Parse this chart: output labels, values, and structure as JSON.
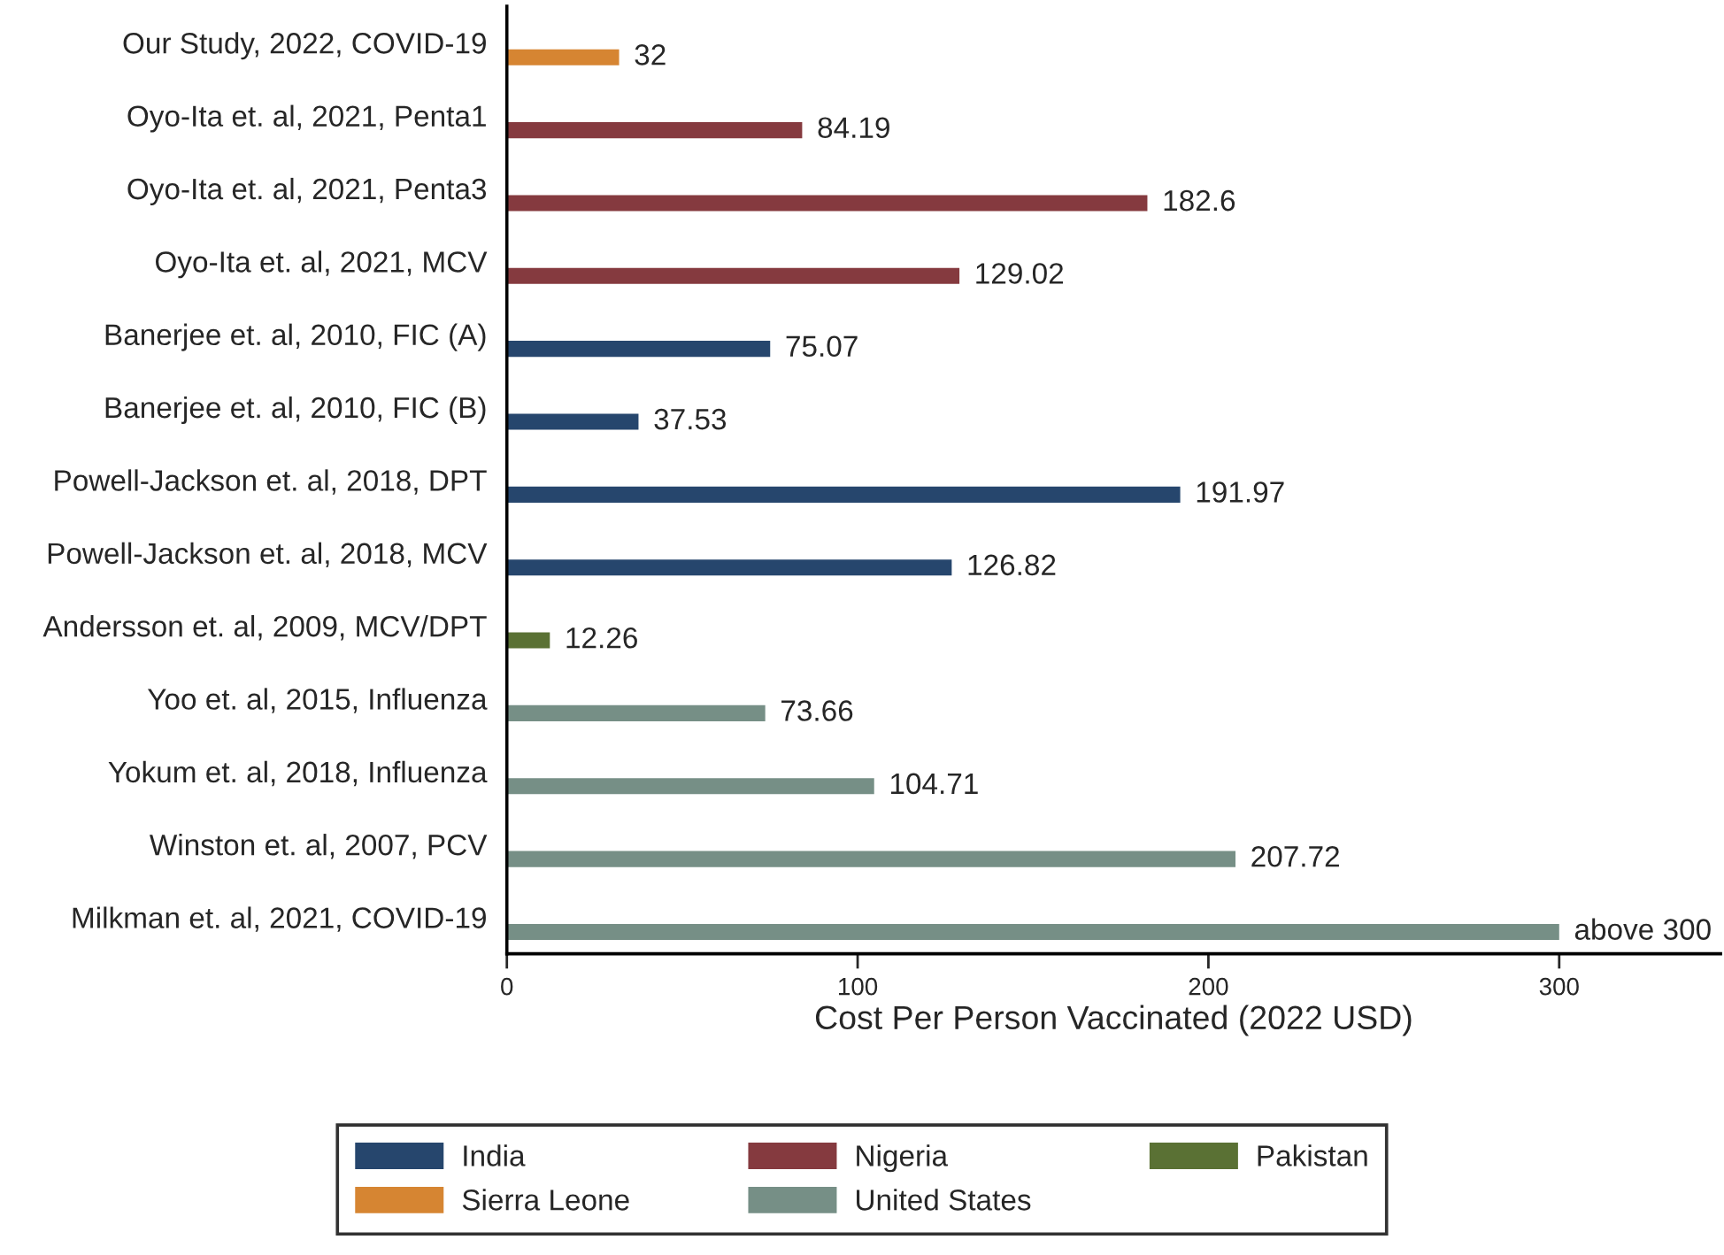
{
  "chart_data": {
    "type": "bar",
    "orientation": "horizontal",
    "xlabel": "Cost Per Person Vaccinated (2022 USD)",
    "categories": [
      "Our Study, 2022, COVID-19",
      "Oyo-Ita et. al, 2021, Penta1",
      "Oyo-Ita et. al, 2021, Penta3",
      "Oyo-Ita et. al, 2021, MCV",
      "Banerjee et. al, 2010, FIC (A)",
      "Banerjee et. al, 2010, FIC (B)",
      "Powell-Jackson et. al, 2018, DPT",
      "Powell-Jackson et. al, 2018, MCV",
      "Andersson et. al, 2009, MCV/DPT",
      "Yoo et. al, 2015, Influenza",
      "Yokum et. al, 2018, Influenza",
      "Winston et. al, 2007, PCV",
      "Milkman et. al, 2021, COVID-19"
    ],
    "series": [
      {
        "name": "India",
        "color": "#26466d",
        "values": [
          null,
          null,
          null,
          null,
          75.07,
          37.53,
          191.97,
          126.82,
          null,
          null,
          null,
          null,
          null
        ],
        "value_labels": [
          null,
          null,
          null,
          null,
          "75.07",
          "37.53",
          "191.97",
          "126.82",
          null,
          null,
          null,
          null,
          null
        ]
      },
      {
        "name": "Nigeria",
        "color": "#853a3f",
        "values": [
          null,
          84.19,
          182.6,
          129.02,
          null,
          null,
          null,
          null,
          null,
          null,
          null,
          null,
          null
        ],
        "value_labels": [
          null,
          "84.19",
          "182.6",
          "129.02",
          null,
          null,
          null,
          null,
          null,
          null,
          null,
          null,
          null
        ]
      },
      {
        "name": "Pakistan",
        "color": "#5a7134",
        "values": [
          null,
          null,
          null,
          null,
          null,
          null,
          null,
          null,
          12.26,
          null,
          null,
          null,
          null
        ],
        "value_labels": [
          null,
          null,
          null,
          null,
          null,
          null,
          null,
          null,
          "12.26",
          null,
          null,
          null,
          null
        ]
      },
      {
        "name": "Sierra Leone",
        "color": "#d68532",
        "values": [
          32,
          null,
          null,
          null,
          null,
          null,
          null,
          null,
          null,
          null,
          null,
          null,
          null
        ],
        "value_labels": [
          "32",
          null,
          null,
          null,
          null,
          null,
          null,
          null,
          null,
          null,
          null,
          null,
          null
        ]
      },
      {
        "name": "United States",
        "color": "#768f86",
        "values": [
          null,
          null,
          null,
          null,
          null,
          null,
          null,
          null,
          null,
          73.66,
          104.71,
          207.72,
          300
        ],
        "value_labels": [
          null,
          null,
          null,
          null,
          null,
          null,
          null,
          null,
          null,
          "73.66",
          "104.71",
          "207.72",
          "above 300"
        ]
      }
    ],
    "xlim": [
      0,
      346
    ],
    "xticks": [
      0,
      100,
      200,
      300
    ],
    "grid": false,
    "legend": "bottom"
  }
}
